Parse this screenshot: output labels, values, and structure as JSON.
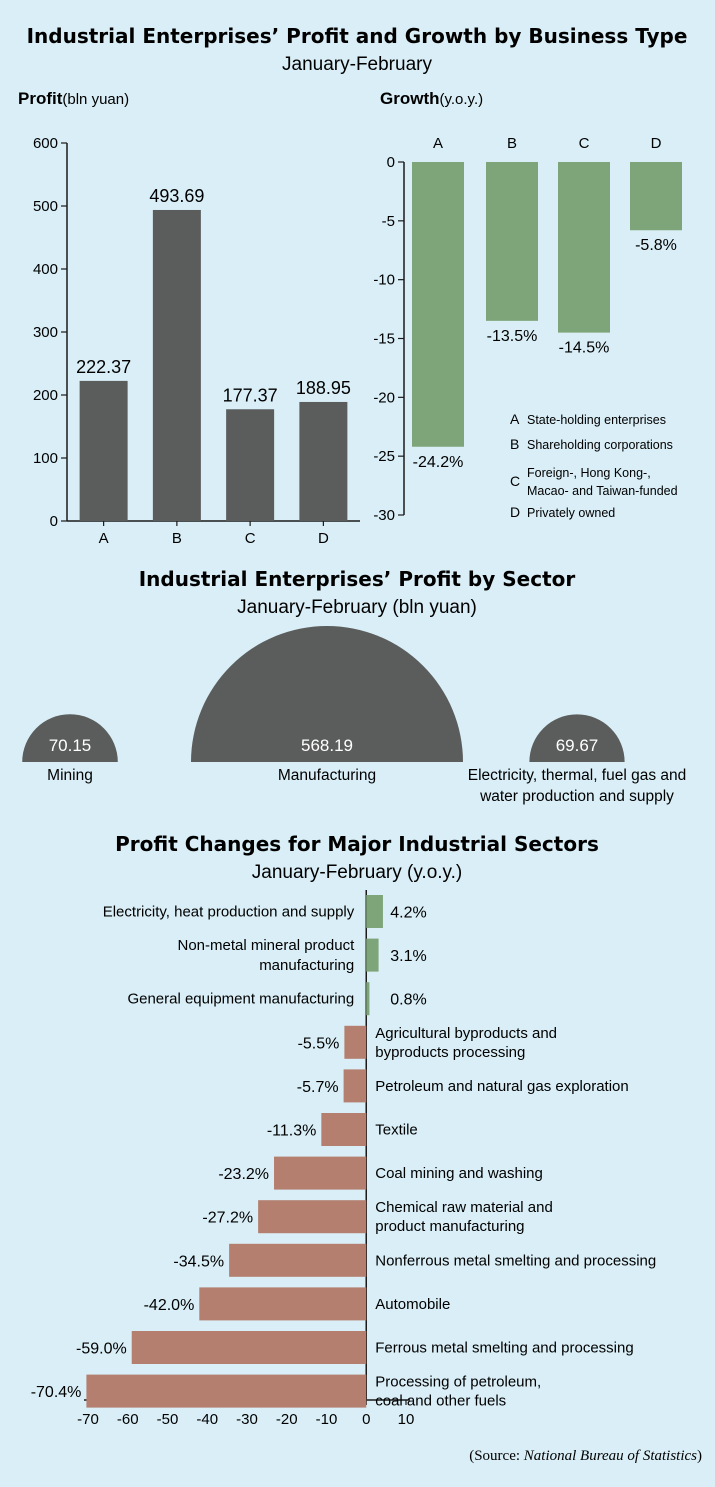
{
  "colors": {
    "background": "#d9eef6",
    "dark_bar": "#5b5d5c",
    "green_bar": "#7ea579",
    "salmon_bar": "#b47f6e",
    "axis": "#1a1a1a"
  },
  "section1": {
    "title": "Industrial Enterprises’ Profit and Growth by Business Type",
    "subtitle": "January-February"
  },
  "section2": {
    "title": "Industrial Enterprises’ Profit by Sector",
    "subtitle": "January-February (bln yuan)"
  },
  "section3": {
    "title": "Profit Changes for Major Industrial Sectors",
    "subtitle": "January-February (y.o.y.)"
  },
  "source": {
    "prefix": "(Source: ",
    "name": "National Bureau of Statistics",
    "suffix": ")"
  },
  "chart_data": [
    {
      "type": "bar",
      "title": "Profit",
      "title_unit": "(bln yuan)",
      "categories": [
        "A",
        "B",
        "C",
        "D"
      ],
      "values": [
        222.37,
        493.69,
        177.37,
        188.95
      ],
      "value_labels": [
        "222.37",
        "493.69",
        "177.37",
        "188.95"
      ],
      "ylim": [
        0,
        600
      ],
      "yticks": [
        0,
        100,
        200,
        300,
        400,
        500,
        600
      ],
      "grid": false
    },
    {
      "type": "bar",
      "title": "Growth",
      "title_unit": "(y.o.y.)",
      "categories": [
        "A",
        "B",
        "C",
        "D"
      ],
      "values": [
        -24.2,
        -13.5,
        -14.5,
        -5.8
      ],
      "value_labels": [
        "-24.2%",
        "-13.5%",
        "-14.5%",
        "-5.8%"
      ],
      "ylim": [
        -30,
        0
      ],
      "yticks": [
        0,
        -5,
        -10,
        -15,
        -20,
        -25,
        -30
      ],
      "grid": false,
      "legend": [
        {
          "key": "A",
          "lines": [
            "State-holding enterprises"
          ]
        },
        {
          "key": "B",
          "lines": [
            "Shareholding corporations"
          ]
        },
        {
          "key": "C",
          "lines": [
            "Foreign-, Hong Kong-,",
            "Macao- and  Taiwan-funded"
          ]
        },
        {
          "key": "D",
          "lines": [
            "Privately owned"
          ]
        }
      ]
    },
    {
      "type": "pie",
      "style": "semicircle-area",
      "items": [
        {
          "label_lines": [
            "Mining"
          ],
          "value": 70.15,
          "value_label": "70.15"
        },
        {
          "label_lines": [
            "Manufacturing"
          ],
          "value": 568.19,
          "value_label": "568.19"
        },
        {
          "label_lines": [
            "Electricity, thermal, fuel gas and",
            "water production and supply"
          ],
          "value": 69.67,
          "value_label": "69.67"
        }
      ]
    },
    {
      "type": "bar",
      "orientation": "horizontal",
      "xlim": [
        -70,
        10
      ],
      "xticks": [
        -70,
        -60,
        -50,
        -40,
        -30,
        -20,
        -10,
        0,
        10
      ],
      "grid": false,
      "items": [
        {
          "label_lines": [
            "Electricity, heat production and supply"
          ],
          "value": 4.2,
          "value_label": "4.2%"
        },
        {
          "label_lines": [
            "Non-metal mineral product",
            "manufacturing"
          ],
          "value": 3.1,
          "value_label": "3.1%"
        },
        {
          "label_lines": [
            "General equipment manufacturing"
          ],
          "value": 0.8,
          "value_label": "0.8%"
        },
        {
          "label_lines": [
            "Agricultural byproducts and",
            "byproducts processing"
          ],
          "value": -5.5,
          "value_label": "-5.5%"
        },
        {
          "label_lines": [
            "Petroleum and natural gas exploration"
          ],
          "value": -5.7,
          "value_label": "-5.7%"
        },
        {
          "label_lines": [
            "Textile"
          ],
          "value": -11.3,
          "value_label": "-11.3%"
        },
        {
          "label_lines": [
            "Coal mining and washing"
          ],
          "value": -23.2,
          "value_label": "-23.2%"
        },
        {
          "label_lines": [
            "Chemical raw material and",
            "product manufacturing"
          ],
          "value": -27.2,
          "value_label": "-27.2%"
        },
        {
          "label_lines": [
            "Nonferrous metal smelting and processing"
          ],
          "value": -34.5,
          "value_label": "-34.5%"
        },
        {
          "label_lines": [
            "Automobile"
          ],
          "value": -42.0,
          "value_label": "-42.0%"
        },
        {
          "label_lines": [
            "Ferrous metal smelting and processing"
          ],
          "value": -59.0,
          "value_label": "-59.0%"
        },
        {
          "label_lines": [
            "Processing of petroleum,",
            "coal and other fuels"
          ],
          "value": -70.4,
          "value_label": "-70.4%"
        }
      ]
    }
  ]
}
